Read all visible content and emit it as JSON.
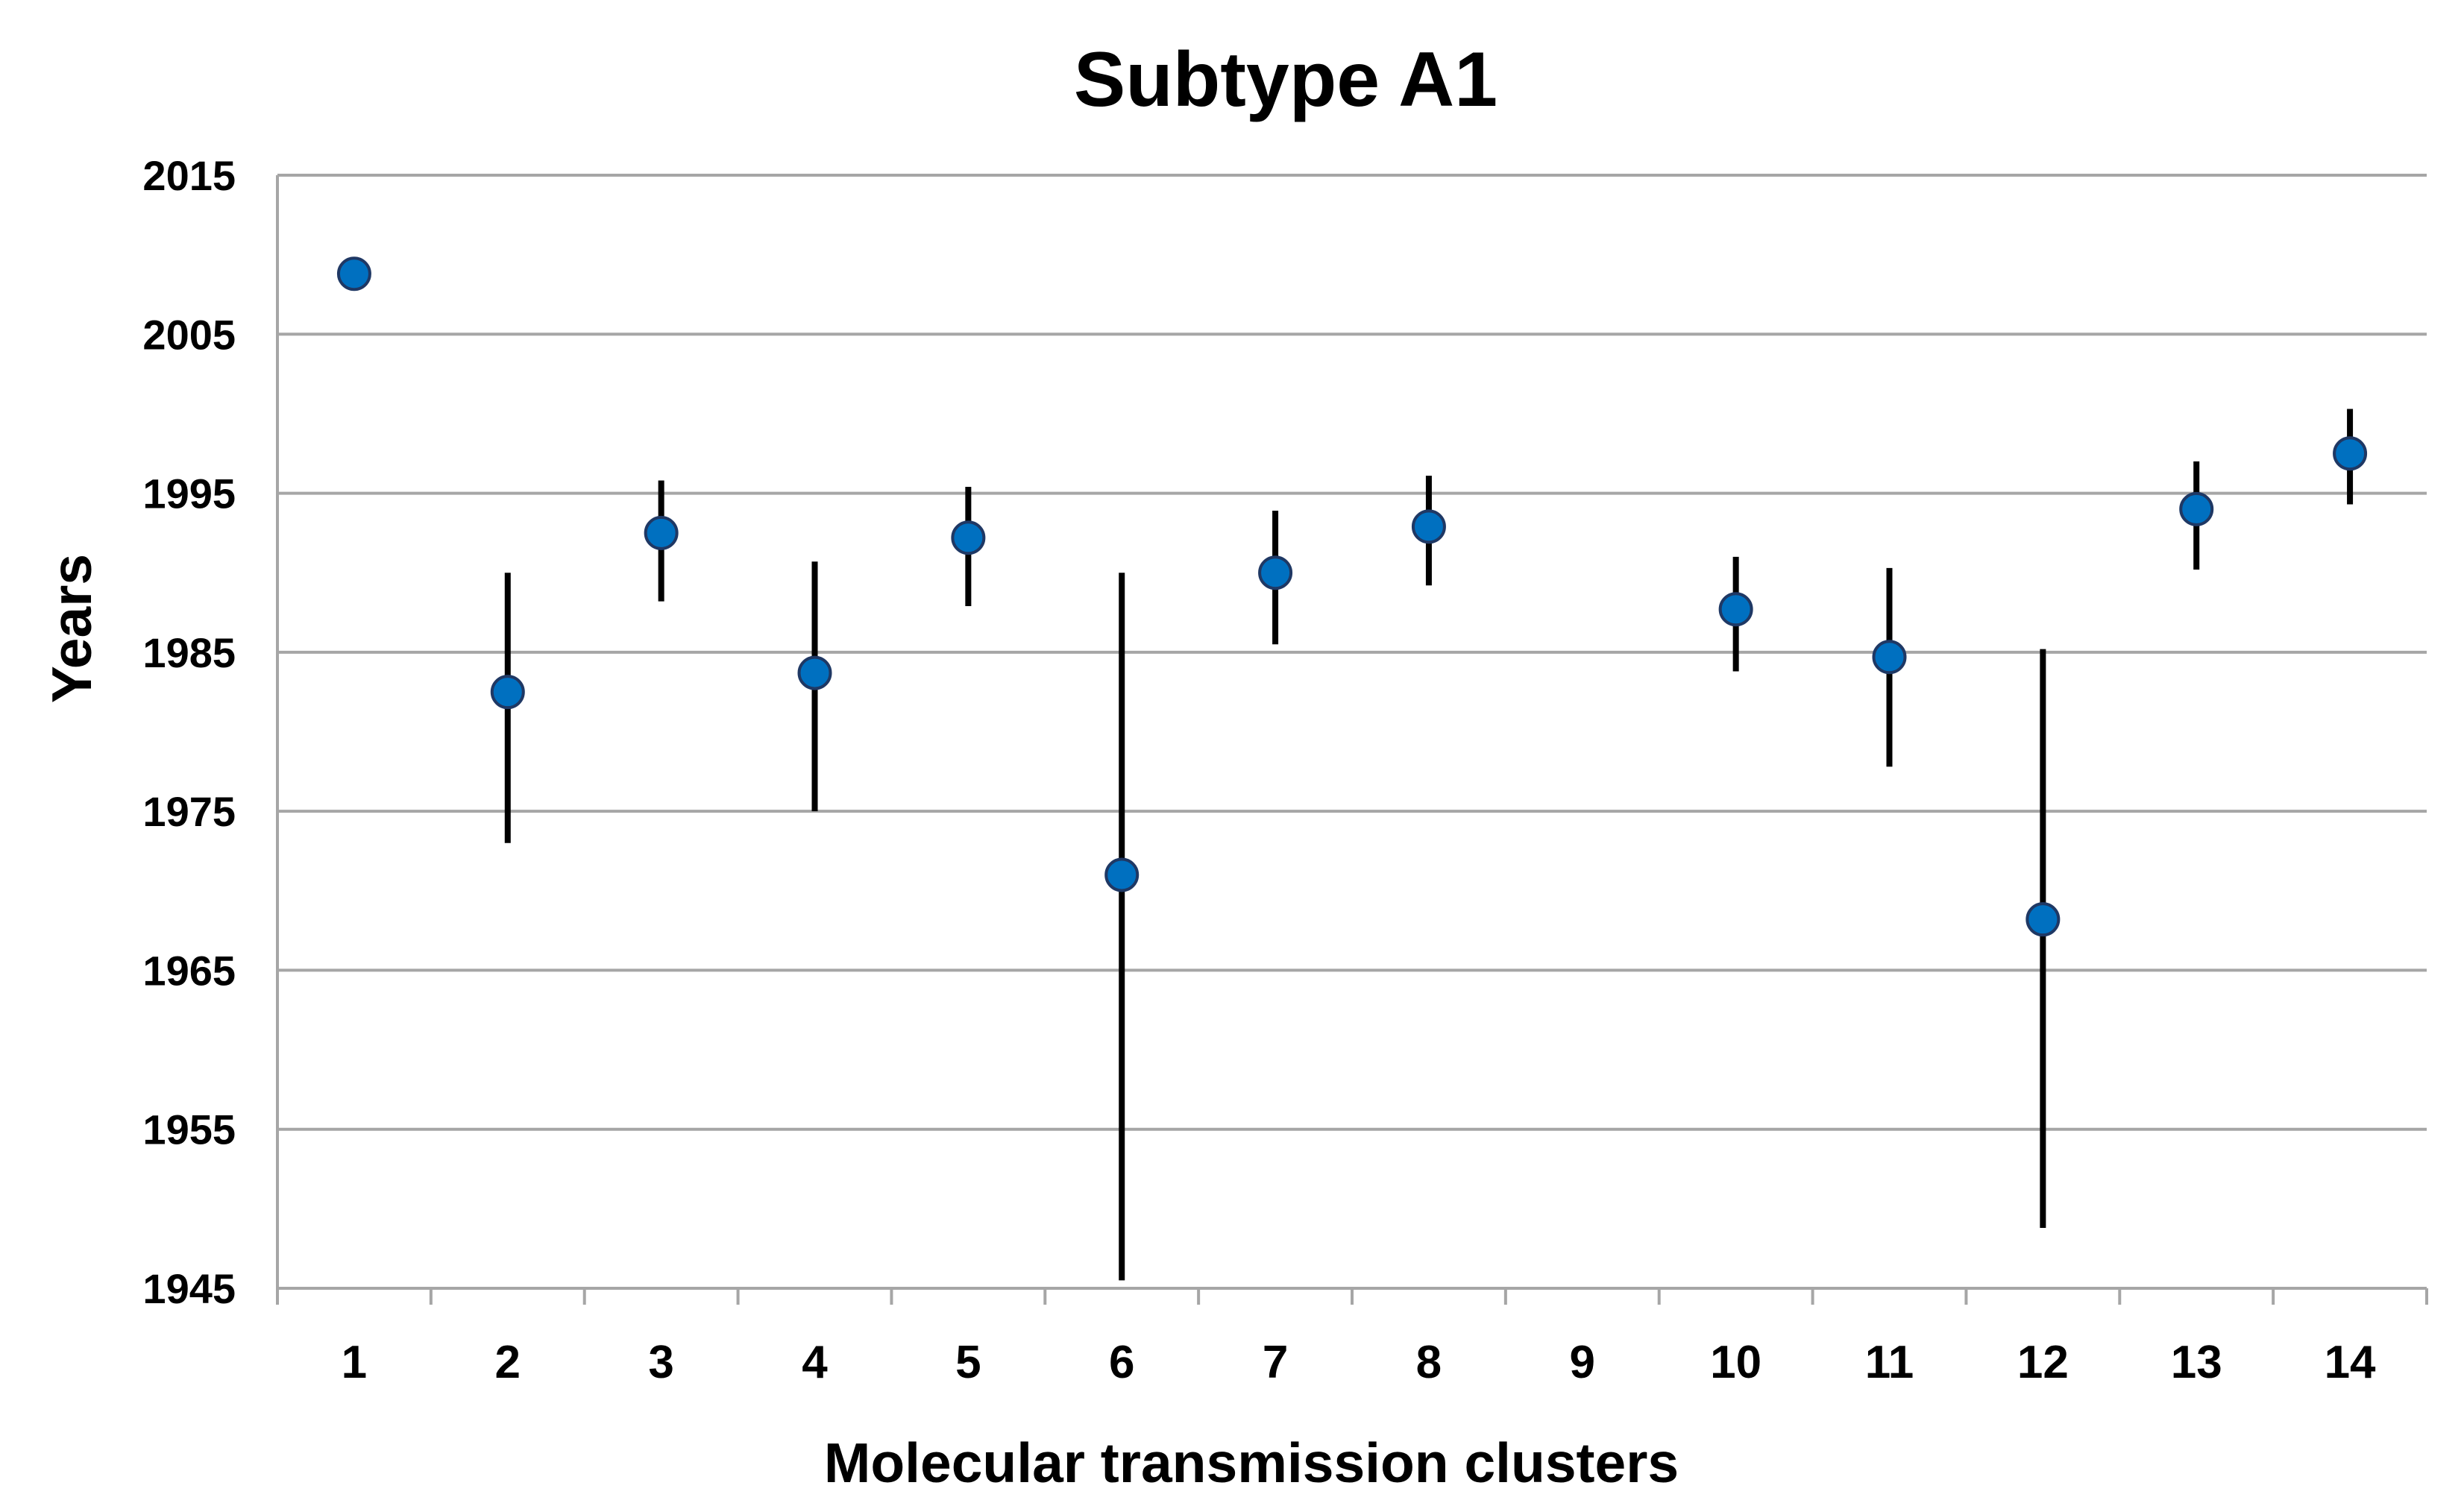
{
  "chart_data": {
    "type": "scatter",
    "title": "Subtype A1",
    "xlabel": "Molecular transmission clusters",
    "ylabel": "Years",
    "categories": [
      "1",
      "2",
      "3",
      "4",
      "5",
      "6",
      "7",
      "8",
      "9",
      "10",
      "11",
      "12",
      "13",
      "14"
    ],
    "yticks": [
      1945,
      1955,
      1965,
      1975,
      1985,
      1995,
      2005,
      2015
    ],
    "ylim": [
      1945,
      2015
    ],
    "grid": true,
    "legend": "none",
    "series": [
      {
        "points": [
          {
            "x": "1",
            "y": 2008.8,
            "lower": 2008.0,
            "upper": 2009.3
          },
          {
            "x": "2",
            "y": 1982.5,
            "lower": 1973.0,
            "upper": 1990.0
          },
          {
            "x": "3",
            "y": 1992.5,
            "lower": 1988.2,
            "upper": 1995.8
          },
          {
            "x": "4",
            "y": 1983.7,
            "lower": 1975.0,
            "upper": 1990.7
          },
          {
            "x": "5",
            "y": 1992.2,
            "lower": 1987.9,
            "upper": 1995.4
          },
          {
            "x": "6",
            "y": 1971.0,
            "lower": 1945.5,
            "upper": 1990.0
          },
          {
            "x": "7",
            "y": 1990.0,
            "lower": 1985.5,
            "upper": 1993.9
          },
          {
            "x": "8",
            "y": 1992.9,
            "lower": 1989.2,
            "upper": 1996.1
          },
          {
            "x": "10",
            "y": 1987.7,
            "lower": 1983.8,
            "upper": 1991.0
          },
          {
            "x": "11",
            "y": 1984.7,
            "lower": 1977.8,
            "upper": 1990.3
          },
          {
            "x": "12",
            "y": 1968.2,
            "lower": 1948.8,
            "upper": 1985.2
          },
          {
            "x": "13",
            "y": 1994.0,
            "lower": 1990.2,
            "upper": 1997.0
          },
          {
            "x": "14",
            "y": 1997.5,
            "lower": 1994.3,
            "upper": 2000.3
          }
        ]
      }
    ],
    "colors": {
      "marker_fill": "#0070C0",
      "marker_stroke": "#1F3864",
      "error_bar": "#000000",
      "gridline": "#A6A6A6",
      "axis": "#A6A6A6"
    }
  }
}
